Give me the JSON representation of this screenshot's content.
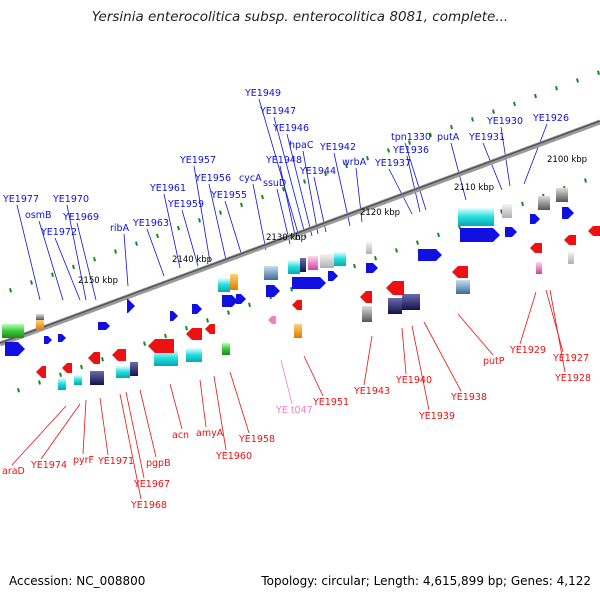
{
  "title": "Yersinia enterocolitica subsp. enterocolitica 8081, complete...",
  "footer": {
    "accession": "Accession: NC_008800",
    "summary": "Topology: circular; Length: 4,615,899 bp; Genes: 4,122"
  },
  "colors": {
    "plus_strand": "#1010e0",
    "minus_strand": "#ee1111",
    "pseudo": "#f080c0",
    "backbone": "#888888",
    "tick": "#1a8a1a"
  },
  "tick_labels": [
    "2100 kbp",
    "2110 kbp",
    "2120 kbp",
    "2130 kbp",
    "2140 kbp",
    "2150 kbp"
  ],
  "plus_labels": [
    "YE1977",
    "osmB",
    "YE1972",
    "YE1970",
    "YE1969",
    "ribA",
    "YE1963",
    "YE1961",
    "YE1959",
    "YE1957",
    "YE1956",
    "YE1955",
    "cycA",
    "ssuD",
    "YE1949",
    "YE1947",
    "YE1946",
    "hpaC",
    "YE1948",
    "YE1944",
    "YE1942",
    "wrbA",
    "YE1937",
    "YE1936",
    "tpn1330",
    "putA",
    "YE1931",
    "YE1930",
    "YE1926"
  ],
  "minus_labels": [
    "araD",
    "YE1974",
    "pyrF",
    "YE1971",
    "YE1967",
    "YE1968",
    "pgpB",
    "acn",
    "amyA",
    "YE1960",
    "YE1958",
    "YE1951",
    "YE1943",
    "YE1940",
    "YE1939",
    "YE1938",
    "putP",
    "YE1929",
    "YE1927",
    "YE1928"
  ],
  "pseudo_labels": [
    "YE t047"
  ]
}
